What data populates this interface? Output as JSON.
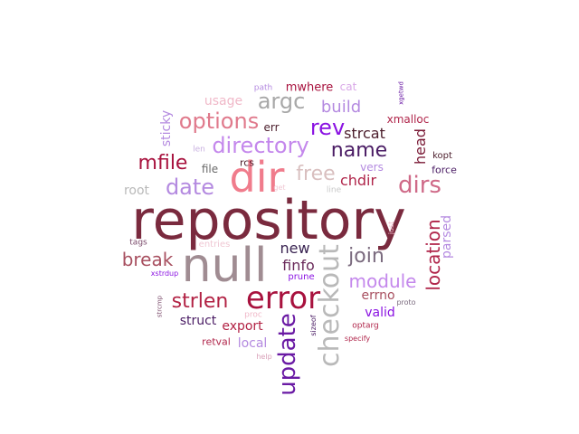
{
  "words": [
    {
      "text": "repository",
      "color": "#7a2a3e"
    },
    {
      "text": "null",
      "color": "#a08c92"
    },
    {
      "text": "dir",
      "color": "#f07c8c"
    },
    {
      "text": "error",
      "color": "#a8123e"
    },
    {
      "text": "checkout",
      "color": "#b9b9b9"
    },
    {
      "text": "update",
      "color": "#6a1aa4"
    },
    {
      "text": "directory",
      "color": "#c488ec"
    },
    {
      "text": "options",
      "color": "#e07a8c"
    },
    {
      "text": "argc",
      "color": "#a8a8a8"
    },
    {
      "text": "rev",
      "color": "#8a12e2"
    },
    {
      "text": "name",
      "color": "#4a1c64"
    },
    {
      "text": "dirs",
      "color": "#cf6a88"
    },
    {
      "text": "date",
      "color": "#b48ae0"
    },
    {
      "text": "free",
      "color": "#d9bfbf"
    },
    {
      "text": "join",
      "color": "#7a6a7e"
    },
    {
      "text": "module",
      "color": "#c488ec"
    },
    {
      "text": "strlen",
      "color": "#b22244"
    },
    {
      "text": "location",
      "color": "#b0254a"
    },
    {
      "text": "mfile",
      "color": "#a8123e"
    },
    {
      "text": "break",
      "color": "#a85060"
    },
    {
      "text": "build",
      "color": "#b48ae0"
    },
    {
      "text": "finfo",
      "color": "#6a2a5a"
    },
    {
      "text": "new",
      "color": "#3a2452"
    },
    {
      "text": "chdir",
      "color": "#b0254a"
    },
    {
      "text": "strcat",
      "color": "#4a1c2a"
    },
    {
      "text": "head",
      "color": "#7a1a36"
    },
    {
      "text": "parsed",
      "color": "#b48ae0"
    },
    {
      "text": "usage",
      "color": "#f0b8c8"
    },
    {
      "text": "sticky",
      "color": "#b48ae0"
    },
    {
      "text": "struct",
      "color": "#4a1c64"
    },
    {
      "text": "export",
      "color": "#b22244"
    },
    {
      "text": "errno",
      "color": "#a85060"
    },
    {
      "text": "valid",
      "color": "#8a12e2"
    },
    {
      "text": "local",
      "color": "#b48ae0"
    },
    {
      "text": "root",
      "color": "#b9b9b9"
    },
    {
      "text": "xmalloc",
      "color": "#b0254a"
    },
    {
      "text": "mwhere",
      "color": "#a8123e"
    },
    {
      "text": "vers",
      "color": "#b48ae0"
    },
    {
      "text": "file",
      "color": "#6a6a6a"
    },
    {
      "text": "rcs",
      "color": "#4a1c2a"
    },
    {
      "text": "err",
      "color": "#4a1c2a"
    },
    {
      "text": "cat",
      "color": "#d9a8e8"
    },
    {
      "text": "kopt",
      "color": "#4a1c2a"
    },
    {
      "text": "force",
      "color": "#4a1c64"
    },
    {
      "text": "retval",
      "color": "#b0254a"
    },
    {
      "text": "optarg",
      "color": "#b0254a"
    },
    {
      "text": "prune",
      "color": "#8a12e2"
    },
    {
      "text": "entries",
      "color": "#f0c8d4"
    },
    {
      "text": "tags",
      "color": "#7a4a6a"
    },
    {
      "text": "path",
      "color": "#b48ae0"
    },
    {
      "text": "len",
      "color": "#c8b0e0"
    },
    {
      "text": "line",
      "color": "#c8c8c8"
    },
    {
      "text": "get",
      "color": "#f0c8d4"
    },
    {
      "text": "xgetwd",
      "color": "#6a1aa4"
    },
    {
      "text": "just",
      "color": "#f0b8c8"
    },
    {
      "text": "proc",
      "color": "#f0b8c8"
    },
    {
      "text": "xstrdup",
      "color": "#8a12e2"
    },
    {
      "text": "strcmp",
      "color": "#7a4a6a"
    },
    {
      "text": "sizeof",
      "color": "#4a1c64"
    },
    {
      "text": "specify",
      "color": "#b0254a"
    },
    {
      "text": "proto",
      "color": "#7a6a7e"
    },
    {
      "text": "help",
      "color": "#d9a0b8"
    }
  ]
}
